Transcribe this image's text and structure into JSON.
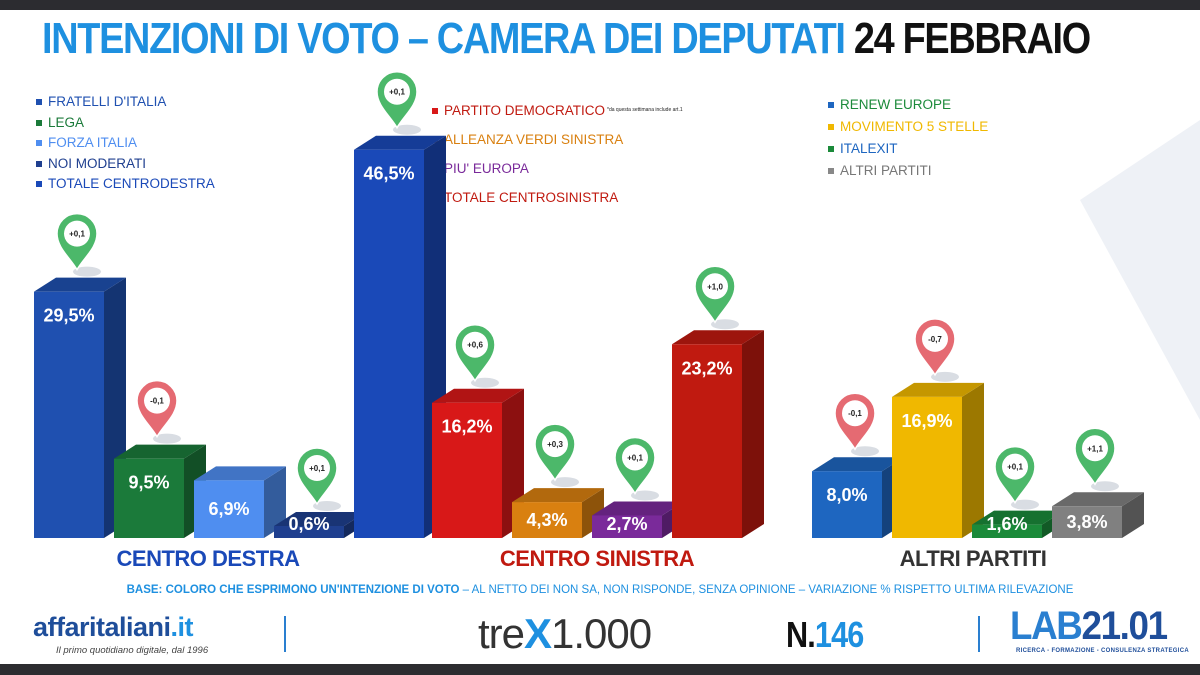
{
  "title": {
    "main": "INTENZIONI DI VOTO – CAMERA DEI DEPUTATI",
    "date": "24 FEBBRAIO"
  },
  "legends": [
    {
      "items": [
        {
          "label": "FRATELLI D'ITALIA",
          "color": "#1f50b0"
        },
        {
          "label": "LEGA",
          "color": "#1b7a3a"
        },
        {
          "label": "FORZA ITALIA",
          "color": "#4f8ef0"
        },
        {
          "label": "NOI MODERATI",
          "color": "#1f3f8f"
        },
        {
          "label": "TOTALE CENTRODESTRA",
          "color": "#1a49b8"
        }
      ]
    },
    {
      "items": [
        {
          "label": "PARTITO DEMOCRATICO",
          "color": "#d81818",
          "note": "*da questa settimana include art.1"
        },
        {
          "label": "ALLEANZA VERDI SINISTRA",
          "color": "#d98010"
        },
        {
          "label": "PIU' EUROPA",
          "color": "#7a2a9a"
        },
        {
          "label": "TOTALE CENTROSINISTRA",
          "color": "#c01a10"
        }
      ]
    },
    {
      "items": [
        {
          "label": "RENEW EUROPE",
          "color": "#1e66c0"
        },
        {
          "label": "MOVIMENTO 5 STELLE",
          "color": "#f0b800"
        },
        {
          "label": "ITALEXIT",
          "color": "#1b8a3a"
        },
        {
          "label": "ALTRI PARTITI",
          "color": "#888888"
        }
      ]
    }
  ],
  "chart_data": {
    "type": "bar",
    "unit": "%",
    "groups": [
      {
        "name": "CENTRO DESTRA",
        "label_color": "#1a49b8",
        "bars": [
          {
            "party": "FRATELLI D'ITALIA",
            "value": 29.5,
            "label": "29,5%",
            "change": "+0,1",
            "change_dir": "up",
            "color": "#1f50b0"
          },
          {
            "party": "LEGA",
            "value": 9.5,
            "label": "9,5%",
            "change": "-0,1",
            "change_dir": "down",
            "color": "#1b7a3a"
          },
          {
            "party": "FORZA ITALIA",
            "value": 6.9,
            "label": "6,9%",
            "change": null,
            "change_dir": null,
            "color": "#4f8ef0"
          },
          {
            "party": "NOI MODERATI",
            "value": 0.6,
            "label": "0,6%",
            "change": "+0,1",
            "change_dir": "up",
            "color": "#1f3f8f"
          },
          {
            "party": "TOTALE CENTRODESTRA",
            "value": 46.5,
            "label": "46,5%",
            "change": "+0,1",
            "change_dir": "up",
            "color": "#1a49b8"
          }
        ]
      },
      {
        "name": "CENTRO SINISTRA",
        "label_color": "#c01a10",
        "bars": [
          {
            "party": "PARTITO DEMOCRATICO",
            "value": 16.2,
            "label": "16,2%",
            "change": "+0,6",
            "change_dir": "up",
            "color": "#d81818"
          },
          {
            "party": "ALLEANZA VERDI SINISTRA",
            "value": 4.3,
            "label": "4,3%",
            "change": "+0,3",
            "change_dir": "up",
            "color": "#d98010"
          },
          {
            "party": "PIU' EUROPA",
            "value": 2.7,
            "label": "2,7%",
            "change": "+0,1",
            "change_dir": "up",
            "color": "#7a2a9a"
          },
          {
            "party": "TOTALE CENTROSINISTRA",
            "value": 23.2,
            "label": "23,2%",
            "change": "+1,0",
            "change_dir": "up",
            "color": "#c01a10"
          }
        ]
      },
      {
        "name": "ALTRI PARTITI",
        "label_color": "#333333",
        "bars": [
          {
            "party": "RENEW EUROPE",
            "value": 8.0,
            "label": "8,0%",
            "change": "-0,1",
            "change_dir": "down",
            "color": "#1e66c0"
          },
          {
            "party": "MOVIMENTO 5 STELLE",
            "value": 16.9,
            "label": "16,9%",
            "change": "-0,7",
            "change_dir": "down",
            "color": "#f0b800"
          },
          {
            "party": "ITALEXIT",
            "value": 1.6,
            "label": "1,6%",
            "change": "+0,1",
            "change_dir": "up",
            "color": "#1b8a3a"
          },
          {
            "party": "ALTRI PARTITI",
            "value": 3.8,
            "label": "3,8%",
            "change": "+1,1",
            "change_dir": "up",
            "color": "#808080"
          }
        ]
      }
    ]
  },
  "footer": {
    "base_bold": "BASE: COLORO CHE ESPRIMONO UN'INTENZIONE DI VOTO",
    "base_rest": " – AL NETTO DEI NON SA, NON RISPONDE, SENZA OPINIONE – VARIAZIONE % RISPETTO ULTIMA RILEVAZIONE",
    "brand_name": "affaritaliani",
    "brand_tld": ".it",
    "brand_tagline": "Il primo quotidiano digitale, dal 1996",
    "trex_a": "tre",
    "trex_x": "X",
    "trex_b": "1.000",
    "issue_prefix": "N.",
    "issue_number": "146",
    "lab_a": "LAB",
    "lab_b": "21.01",
    "lab_tagline": "RICERCA - FORMAZIONE - CONSULENZA STRATEGICA"
  }
}
